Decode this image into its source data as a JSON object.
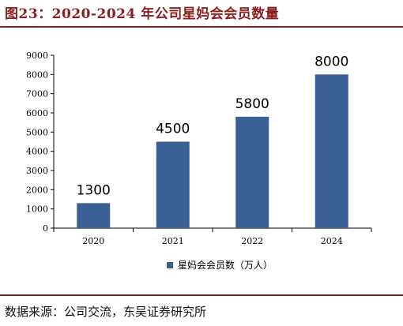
{
  "figure": {
    "title": "图23：2020-2024 年公司星妈会会员数量",
    "source": "数据来源：公司交流，东吴证券研究所"
  },
  "chart_data": {
    "type": "bar",
    "title": "",
    "xlabel": "",
    "ylabel": "",
    "categories": [
      "2020",
      "2021",
      "2022",
      "2024"
    ],
    "series": [
      {
        "name": "星妈会会员数（万人）",
        "values": [
          1300,
          4500,
          5800,
          8000
        ],
        "color": "#3a5f95"
      }
    ],
    "data_labels": [
      "1300",
      "4500",
      "5800",
      "8000"
    ],
    "ylim": [
      0,
      9000
    ],
    "yticks": [
      "0",
      "1000",
      "2000",
      "3000",
      "4000",
      "5000",
      "6000",
      "7000",
      "8000",
      "9000"
    ],
    "ytick_values": [
      0,
      1000,
      2000,
      3000,
      4000,
      5000,
      6000,
      7000,
      8000,
      9000
    ],
    "grid": false,
    "legend_position": "bottom-center"
  }
}
